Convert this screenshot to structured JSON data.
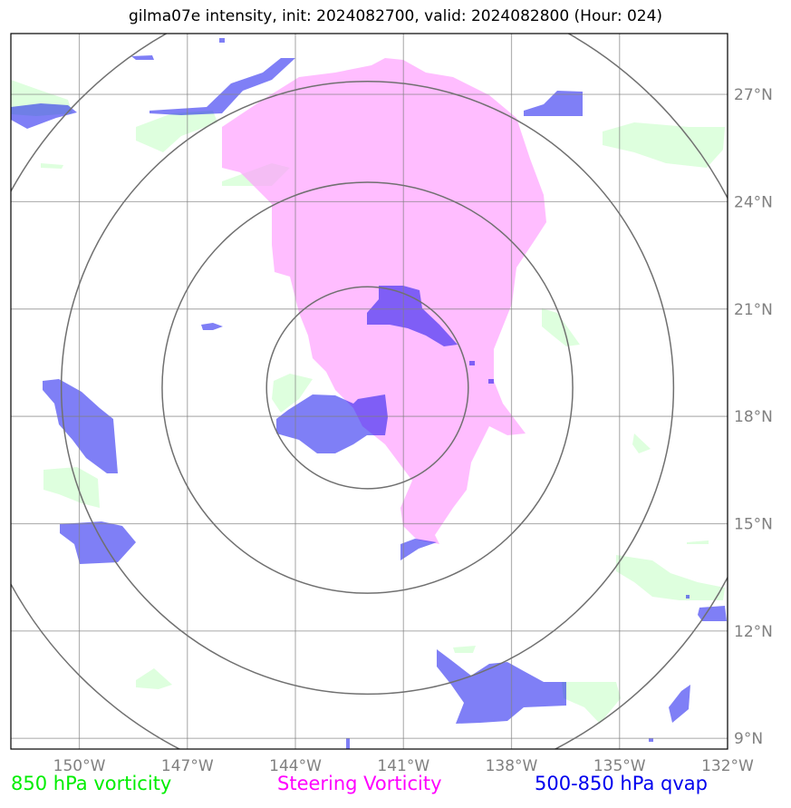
{
  "title": "gilma07e intensity, init: 2024082700, valid: 2024082800 (Hour: 024)",
  "legend": {
    "vort850": {
      "label": "850 hPa vorticity",
      "color": "#00ee00"
    },
    "steering": {
      "label": "Steering Vorticity",
      "color": "#ff00ff"
    },
    "qvap": {
      "label": "500-850 hPa qvap",
      "color": "#0000ee"
    }
  },
  "axes": {
    "lon_ticks": [
      "150°W",
      "147°W",
      "144°W",
      "141°W",
      "138°W",
      "135°W",
      "132°W"
    ],
    "lat_ticks": [
      "27°N",
      "24°N",
      "21°N",
      "18°N",
      "15°N",
      "12°N",
      "9°N"
    ],
    "lon_values": [
      -150,
      -147,
      -144,
      -141,
      -138,
      -135,
      -132
    ],
    "lat_values": [
      27,
      24,
      21,
      18,
      15,
      12,
      9
    ],
    "lon_range": [
      -151.9,
      -132.0
    ],
    "lat_range": [
      8.7,
      28.7
    ],
    "grid": true
  },
  "storm_center": {
    "lon": -142.0,
    "lat": 18.8
  },
  "range_rings_deg": [
    2.8,
    5.7,
    8.5,
    11.3
  ],
  "fill_colors": {
    "vort850": "#ccffcc",
    "steering": "#ff99ff",
    "qvap": "#0000ee"
  }
}
